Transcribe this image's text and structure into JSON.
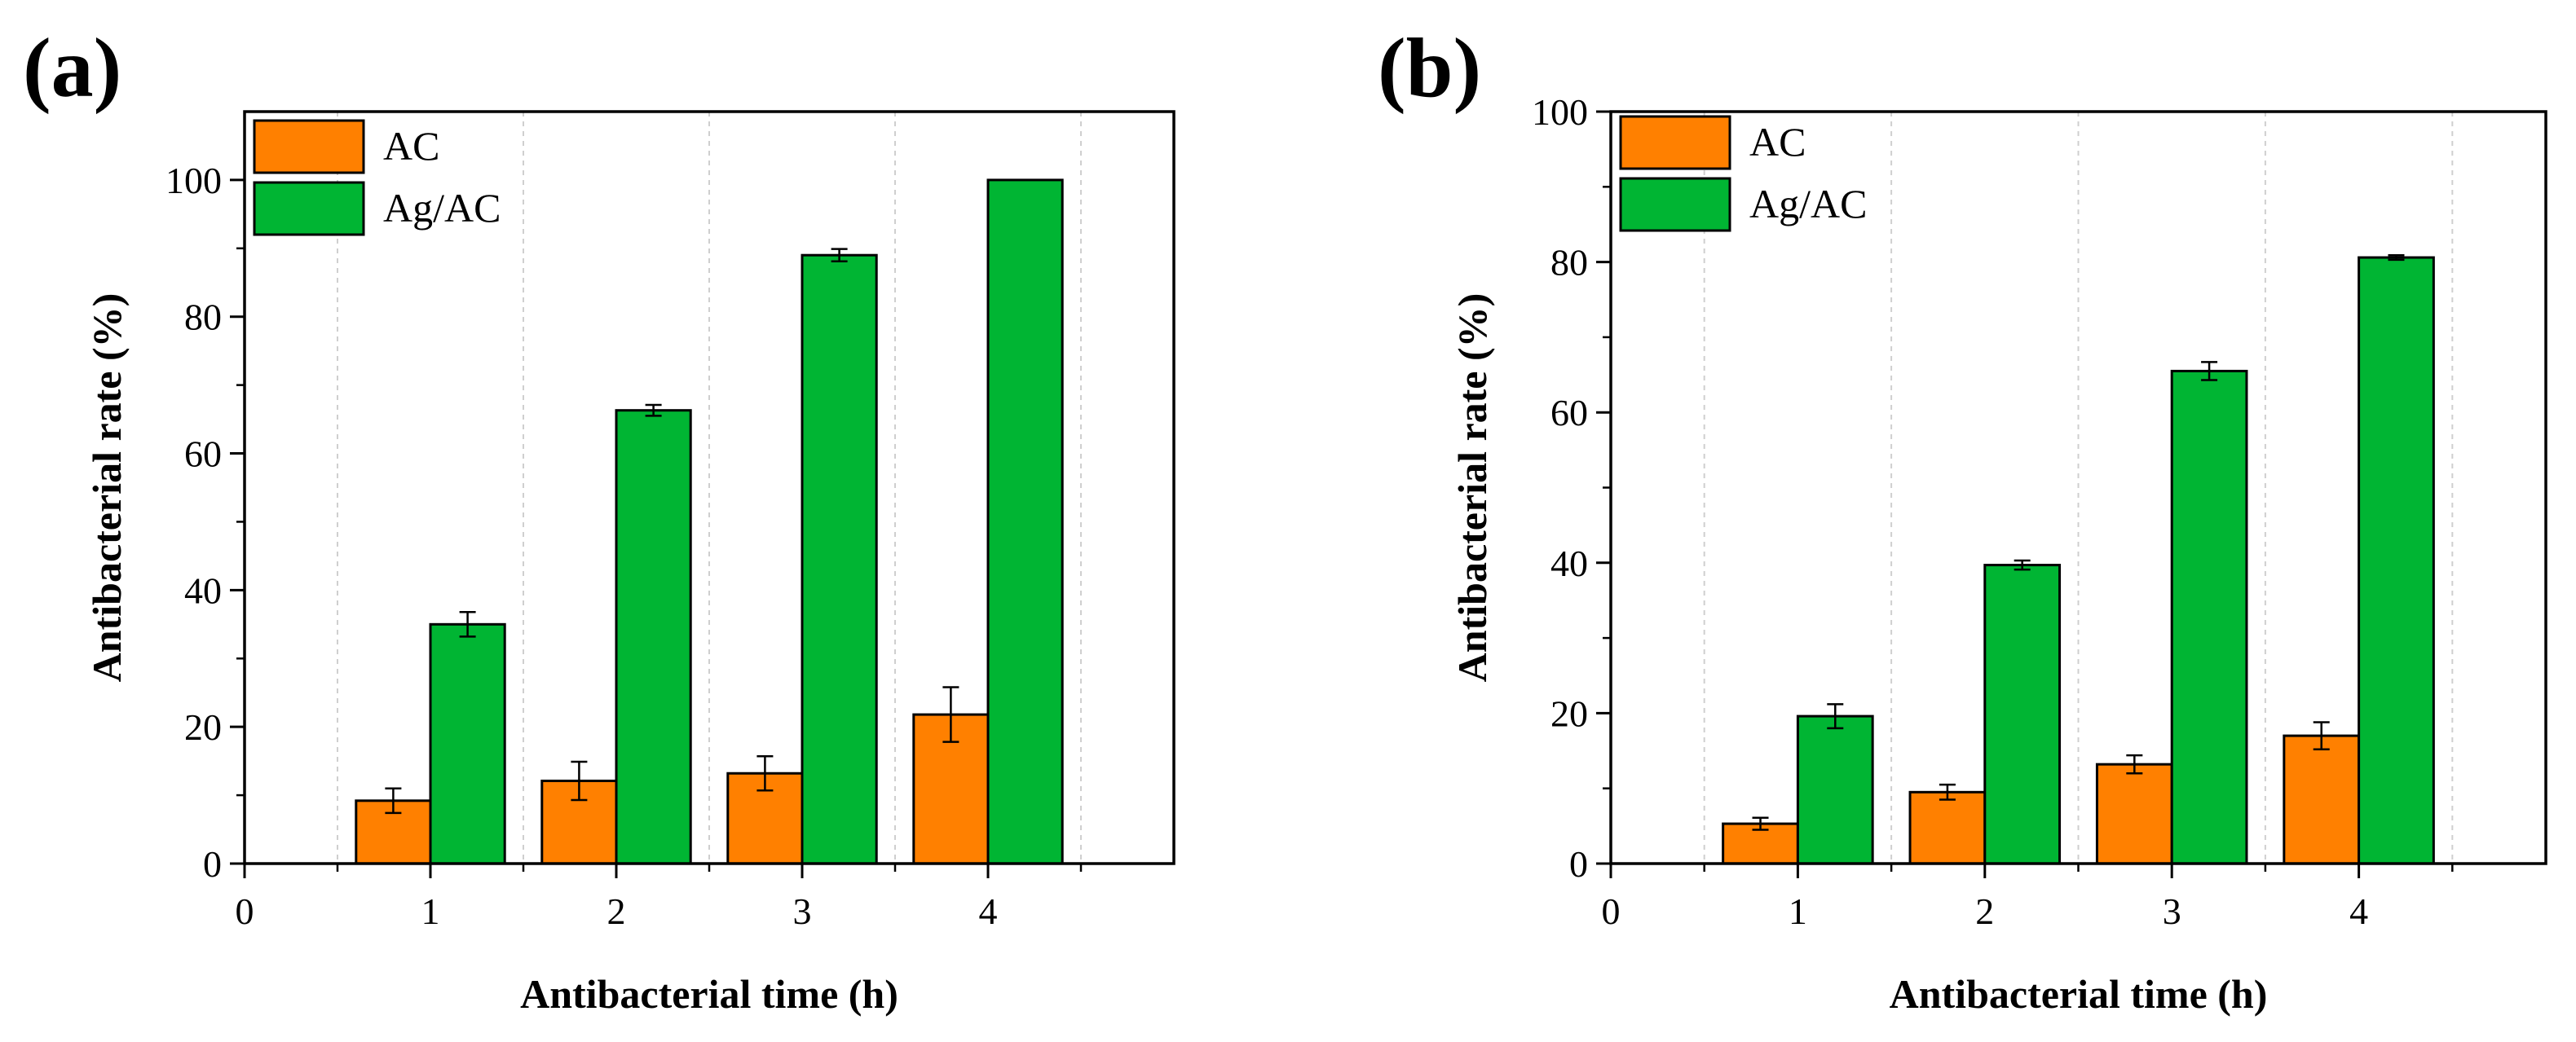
{
  "colors": {
    "ac": "#ff8000",
    "agac": "#00b533",
    "grid": "#cfcfcf",
    "axis": "#000000"
  },
  "chart_data": [
    {
      "panel": "(a)",
      "type": "bar",
      "xlabel": "Antibacterial time (h)",
      "ylabel": "Antibacterial rate (%)",
      "xlim": [
        0,
        5
      ],
      "ylim": [
        0,
        110
      ],
      "xticks": [
        0,
        1,
        2,
        3,
        4
      ],
      "yticks": [
        0,
        20,
        40,
        60,
        80,
        100
      ],
      "categories": [
        1,
        2,
        3,
        4
      ],
      "legend": "top-left",
      "series": [
        {
          "name": "AC",
          "values": [
            9.2,
            12.1,
            13.2,
            21.8
          ],
          "errors": [
            1.8,
            2.8,
            2.5,
            4.0
          ]
        },
        {
          "name": "Ag/AC",
          "values": [
            35.0,
            66.3,
            89.0,
            100.0
          ],
          "errors": [
            1.8,
            0.8,
            0.9,
            0.0
          ]
        }
      ]
    },
    {
      "panel": "(b)",
      "type": "bar",
      "xlabel": "Antibacterial time (h)",
      "ylabel": "Antibacterial rate (%)",
      "xlim": [
        0,
        5
      ],
      "ylim": [
        0,
        100
      ],
      "xticks": [
        0,
        1,
        2,
        3,
        4
      ],
      "yticks": [
        0,
        20,
        40,
        60,
        80,
        100
      ],
      "categories": [
        1,
        2,
        3,
        4
      ],
      "legend": "top-left",
      "series": [
        {
          "name": "AC",
          "values": [
            5.3,
            9.5,
            13.2,
            17.0
          ],
          "errors": [
            0.8,
            1.0,
            1.2,
            1.8
          ]
        },
        {
          "name": "Ag/AC",
          "values": [
            19.6,
            39.7,
            65.5,
            80.6
          ],
          "errors": [
            1.6,
            0.6,
            1.2,
            0.3
          ]
        }
      ]
    }
  ]
}
